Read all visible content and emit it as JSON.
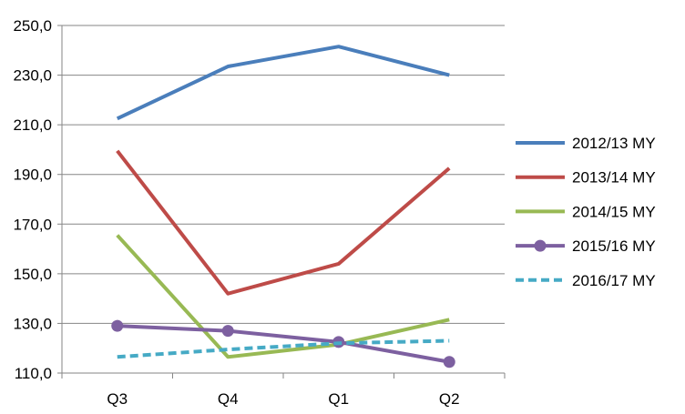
{
  "chart_data": {
    "type": "line",
    "categories": [
      "Q3",
      "Q4",
      "Q1",
      "Q2"
    ],
    "ylim": [
      110,
      250
    ],
    "yticks": [
      "110,0",
      "130,0",
      "150,0",
      "170,0",
      "190,0",
      "210,0",
      "230,0",
      "250,0"
    ],
    "ytick_values": [
      110,
      130,
      150,
      170,
      190,
      210,
      230,
      250
    ],
    "grid": true,
    "legend_position": "right",
    "series": [
      {
        "name": "2012/13 MY",
        "values": [
          212.5,
          233.5,
          241.5,
          230.0
        ],
        "color": "#4a7ebb",
        "dash": "solid",
        "marker": "none"
      },
      {
        "name": "2013/14 MY",
        "values": [
          199.5,
          142.0,
          154.0,
          192.5
        ],
        "color": "#be4b48",
        "dash": "solid",
        "marker": "none"
      },
      {
        "name": "2014/15 MY",
        "values": [
          165.5,
          116.5,
          121.5,
          131.5
        ],
        "color": "#98b954",
        "dash": "solid",
        "marker": "none"
      },
      {
        "name": "2015/16 MY",
        "values": [
          129.0,
          127.0,
          122.5,
          114.5
        ],
        "color": "#7d60a0",
        "dash": "solid",
        "marker": "circle"
      },
      {
        "name": "2016/17 MY",
        "values": [
          116.5,
          119.5,
          122.0,
          123.0
        ],
        "color": "#46aac5",
        "dash": "dashed",
        "marker": "none"
      }
    ]
  }
}
